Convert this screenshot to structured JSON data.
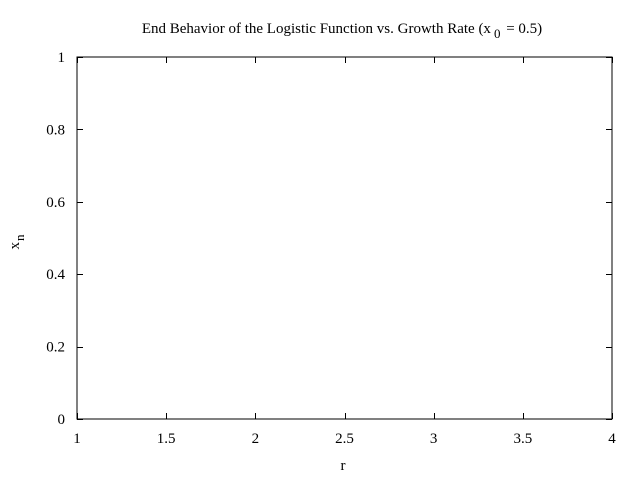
{
  "chart_data": {
    "type": "scatter",
    "title": {
      "prefix": "End Behavior of the Logistic Function vs. Growth Rate (x",
      "subscript": "0",
      "suffix": " = 0.5)"
    },
    "xlabel": "r",
    "ylabel": {
      "base": "x",
      "subscript": "n"
    },
    "xlim": [
      1,
      4
    ],
    "ylim": [
      0,
      1
    ],
    "xticks": [
      {
        "value": 1,
        "label": "1"
      },
      {
        "value": 1.5,
        "label": "1.5"
      },
      {
        "value": 2,
        "label": "2"
      },
      {
        "value": 2.5,
        "label": "2.5"
      },
      {
        "value": 3,
        "label": "3"
      },
      {
        "value": 3.5,
        "label": "3.5"
      },
      {
        "value": 4,
        "label": "4"
      }
    ],
    "yticks": [
      {
        "value": 0,
        "label": "0"
      },
      {
        "value": 0.2,
        "label": "0.2"
      },
      {
        "value": 0.4,
        "label": "0.4"
      },
      {
        "value": 0.6,
        "label": "0.6"
      },
      {
        "value": 0.8,
        "label": "0.8"
      },
      {
        "value": 1,
        "label": "1"
      }
    ],
    "grid": false,
    "series": [],
    "colors": {
      "axis": "#000000",
      "background": "#ffffff"
    }
  }
}
